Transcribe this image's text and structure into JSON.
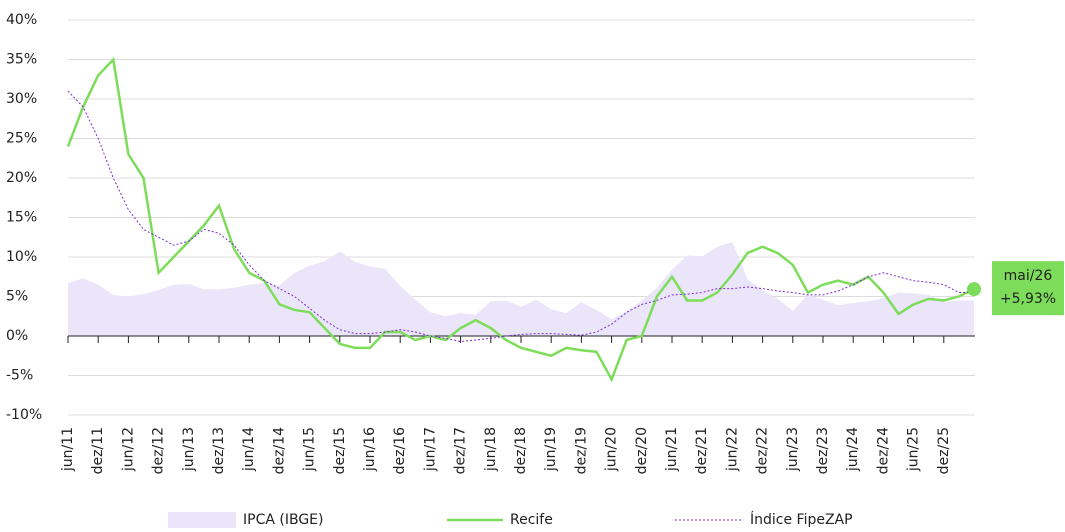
{
  "chart_data": {
    "type": "line",
    "categories": [
      "jun/11",
      null,
      "dez/11",
      null,
      "jun/12",
      null,
      "dez/12",
      null,
      "jun/13",
      null,
      "dez/13",
      null,
      "jun/14",
      null,
      "dez/14",
      null,
      "jun/15",
      null,
      "dez/15",
      null,
      "jun/16",
      null,
      "dez/16",
      null,
      "jun/17",
      null,
      "dez/17",
      null,
      "jun/18",
      null,
      "dez/18",
      null,
      "jun/19",
      null,
      "dez/19",
      null,
      "jun/20",
      null,
      "dez/20",
      null,
      "jun/21",
      null,
      "dez/21",
      null,
      "jun/22",
      null,
      "dez/22",
      null,
      "jun/23",
      null,
      "dez/23",
      null,
      "jun/24",
      null,
      "dez/24",
      null,
      "jun/25",
      null,
      "dez/25",
      null,
      null
    ],
    "series": [
      {
        "name": "IPCA (IBGE)",
        "color": "#ebe5fa",
        "style": "area",
        "values": [
          6.7,
          7.3,
          6.5,
          5.2,
          5,
          5.3,
          5.8,
          6.5,
          6.6,
          5.9,
          5.9,
          6.1,
          6.5,
          6.7,
          6.4,
          8,
          8.9,
          9.5,
          10.7,
          9.4,
          8.8,
          8.5,
          6.3,
          4.6,
          3,
          2.5,
          2.9,
          2.7,
          4.4,
          4.5,
          3.7,
          4.6,
          3.4,
          2.9,
          4.3,
          3.3,
          2.1,
          3.1,
          4.5,
          6.1,
          8.4,
          10.2,
          10.1,
          11.3,
          11.9,
          7.2,
          5.8,
          4.7,
          3.2,
          5.2,
          4.6,
          3.9,
          4.2,
          4.4,
          4.8,
          5.5,
          5.4,
          5.2,
          4.3,
          4.5,
          4.5
        ]
      },
      {
        "name": "Recife",
        "color": "#7ddc5a",
        "style": "solid",
        "values": [
          24,
          29,
          33,
          35,
          23,
          20,
          8,
          10,
          12,
          14,
          16.5,
          11,
          8,
          7,
          4,
          3.3,
          3,
          1,
          -1,
          -1.5,
          -1.5,
          0.5,
          0.5,
          -0.5,
          0,
          -0.5,
          1,
          2,
          1,
          -0.5,
          -1.5,
          -2,
          -2.5,
          -1.5,
          -1.8,
          -2,
          -5.5,
          -0.5,
          0,
          5,
          7.5,
          4.5,
          4.5,
          5.5,
          7.8,
          10.5,
          11.3,
          10.5,
          9,
          5.5,
          6.5,
          7,
          6.5,
          7.5,
          5.5,
          2.8,
          4,
          4.7,
          4.5,
          5,
          5.93
        ]
      },
      {
        "name": "Índice FipeZAP",
        "color": "#7a2bd6",
        "style": "dotted",
        "values": [
          31,
          29,
          25,
          20,
          16,
          13.5,
          12.5,
          11.5,
          12,
          13.5,
          13,
          11.5,
          9,
          7,
          6,
          5,
          3.5,
          2,
          0.8,
          0.3,
          0.3,
          0.5,
          0.8,
          0.5,
          0,
          -0.3,
          -0.7,
          -0.5,
          -0.3,
          0,
          0.2,
          0.3,
          0.3,
          0.2,
          0.1,
          0.5,
          1.5,
          3,
          4,
          4.5,
          5.2,
          5.3,
          5.5,
          6,
          6,
          6.2,
          6,
          5.7,
          5.5,
          5.2,
          5.2,
          5.7,
          6.5,
          7.5,
          8,
          7.5,
          7,
          6.8,
          6.5,
          5.5,
          5.5
        ]
      }
    ],
    "annotations": [
      "mai/26",
      "+5,93%"
    ],
    "ylim": [
      -10,
      40
    ],
    "yticks": [
      {
        "value": -10,
        "label": "-10%"
      },
      {
        "value": -5,
        "label": "-5%"
      },
      {
        "value": 0,
        "label": "0%"
      },
      {
        "value": 5,
        "label": "5%"
      },
      {
        "value": 10,
        "label": "10%"
      },
      {
        "value": 15,
        "label": "15%"
      },
      {
        "value": 20,
        "label": "20%"
      },
      {
        "value": 25,
        "label": "25%"
      },
      {
        "value": 30,
        "label": "30%"
      },
      {
        "value": 35,
        "label": "35%"
      },
      {
        "value": 40,
        "label": "40%"
      }
    ],
    "grid": true
  }
}
